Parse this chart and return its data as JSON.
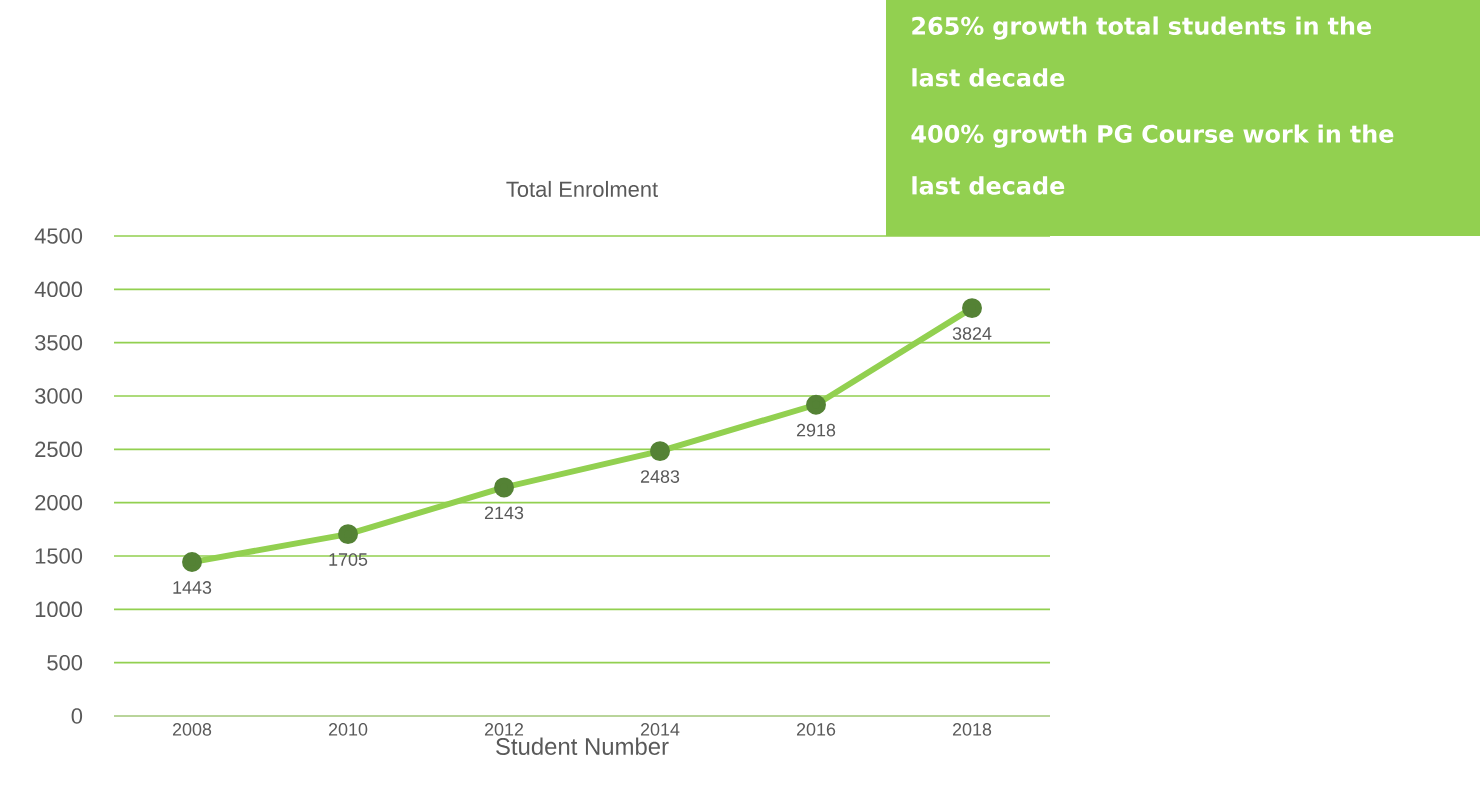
{
  "chart_data": {
    "type": "line",
    "title": "Total Enrolment",
    "xlabel": "Student Number",
    "categories": [
      "2008",
      "2010",
      "2012",
      "2014",
      "2016",
      "2018"
    ],
    "values": [
      1443,
      1705,
      2143,
      2483,
      2918,
      3824
    ],
    "color": "#92d050",
    "ylim": [
      0,
      4500
    ],
    "yticks": [
      0,
      500,
      1000,
      1500,
      2000,
      2500,
      3000,
      3500,
      4000,
      4500
    ],
    "grid": "y",
    "marker": "circle",
    "data_labels": true,
    "annotations": [
      "265% growth total students in the last decade",
      "400% growth PG Course work in the last decade"
    ]
  }
}
